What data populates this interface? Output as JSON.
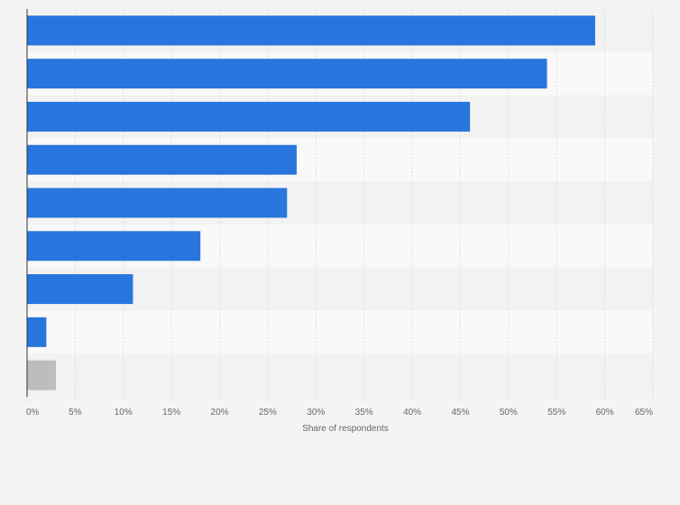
{
  "chart_data": {
    "type": "bar",
    "orientation": "horizontal",
    "title": "",
    "xlabel": "Share of respondents",
    "ylabel": "",
    "xlim": [
      0,
      65
    ],
    "ticks": [
      "0%",
      "5%",
      "10%",
      "15%",
      "20%",
      "25%",
      "30%",
      "35%",
      "40%",
      "45%",
      "50%",
      "55%",
      "60%",
      "65%"
    ],
    "categories": [
      "",
      "",
      "",
      "",
      "",
      "",
      "",
      "",
      ""
    ],
    "values": [
      59,
      54,
      46,
      28,
      27,
      18,
      11,
      2,
      3
    ],
    "bar_colors": [
      "#2876dd",
      "#2876dd",
      "#2876dd",
      "#2876dd",
      "#2876dd",
      "#2876dd",
      "#2876dd",
      "#2876dd",
      "#bdbdbd"
    ],
    "grid": true,
    "legend": "none"
  },
  "colors": {
    "background": "#f4f4f4",
    "band_light": "#f9f9f9",
    "band_dark": "#f2f2f2",
    "gridline": "#dcdcdc",
    "axis": "#333333"
  }
}
